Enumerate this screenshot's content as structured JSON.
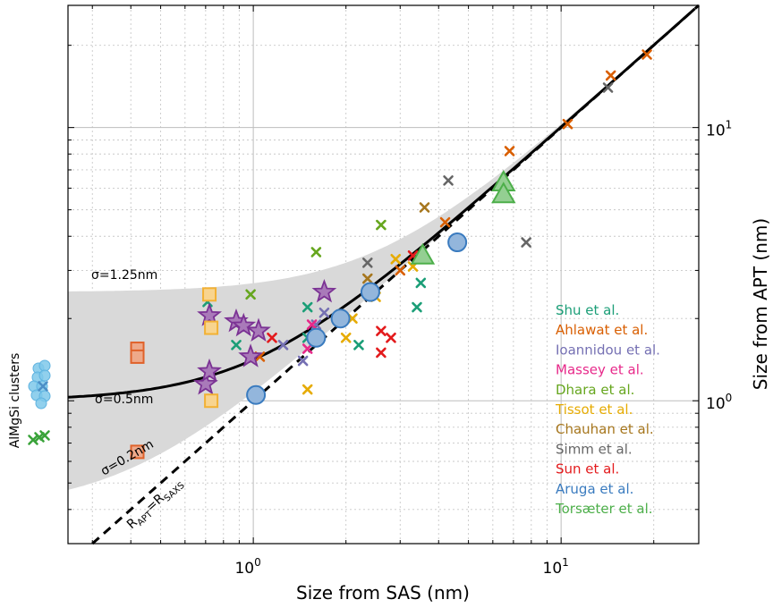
{
  "chart_data": {
    "type": "scatter",
    "title": "",
    "xlabel": "Size from SAS (nm)",
    "ylabel": "Size from APT (nm)",
    "xscale": "log",
    "yscale": "log",
    "xlim": [
      0.25,
      28
    ],
    "ylim": [
      0.3,
      28
    ],
    "x_tick_labels": [
      {
        "base": "10",
        "exp": "0",
        "value": 1
      },
      {
        "base": "10",
        "exp": "1",
        "value": 10
      }
    ],
    "y_tick_labels": [
      {
        "base": "10",
        "exp": "0",
        "value": 1
      },
      {
        "base": "10",
        "exp": "1",
        "value": 10
      }
    ],
    "grid": true,
    "legend_position": "right",
    "annotations": {
      "sigma_high": "σ=1.25nm",
      "sigma_mid": "σ=0.5nm",
      "sigma_low": "σ=0.2nm",
      "identity_label": "R",
      "identity_sub1": "APT",
      "identity_mid": "=R",
      "identity_sub2": "SAXS",
      "side_label": "AlMgSi clusters"
    },
    "model_curve": {
      "sigma": 0.5,
      "color": "#000000"
    },
    "band": {
      "sigma_low": 0.2,
      "sigma_high": 1.25,
      "color": "#d9d9d9"
    },
    "series": [
      {
        "name": "Shu et al.",
        "color": "#1b9e77",
        "marker": "x",
        "points": [
          [
            0.71,
            2.3
          ],
          [
            0.88,
            1.6
          ],
          [
            1.5,
            2.2
          ],
          [
            1.5,
            1.7
          ],
          [
            2.2,
            1.6
          ],
          [
            3.5,
            2.7
          ],
          [
            3.4,
            2.2
          ]
        ]
      },
      {
        "name": "Ahlawat et al.",
        "color": "#d95f02",
        "marker": "x",
        "points": [
          [
            1.05,
            1.45
          ],
          [
            3.0,
            3.0
          ],
          [
            4.2,
            4.5
          ],
          [
            6.8,
            8.2
          ],
          [
            10.5,
            10.3
          ],
          [
            14.5,
            15.5
          ],
          [
            19,
            18.5
          ]
        ]
      },
      {
        "name": "Ioannidou et al.",
        "color": "#7570b3",
        "marker": "x",
        "points": [
          [
            1.25,
            1.6
          ],
          [
            1.7,
            2.1
          ],
          [
            1.45,
            1.4
          ],
          [
            1.6,
            1.9
          ]
        ]
      },
      {
        "name": "Massey et al.",
        "color": "#e7298a",
        "marker": "x",
        "points": [
          [
            1.5,
            1.55
          ],
          [
            1.55,
            1.9
          ]
        ]
      },
      {
        "name": "Dhara et al.",
        "color": "#66a61e",
        "marker": "x",
        "points": [
          [
            0.98,
            2.45
          ],
          [
            1.6,
            3.5
          ],
          [
            2.6,
            4.4
          ]
        ]
      },
      {
        "name": "Tissot et al.",
        "color": "#e6ab02",
        "marker": "x",
        "points": [
          [
            1.5,
            1.1
          ],
          [
            2.0,
            1.7
          ],
          [
            2.1,
            2.0
          ],
          [
            2.9,
            3.3
          ],
          [
            3.3,
            3.1
          ],
          [
            2.5,
            2.4
          ]
        ]
      },
      {
        "name": "Chauhan et al.",
        "color": "#a6761d",
        "marker": "x",
        "points": [
          [
            2.35,
            2.8
          ],
          [
            3.6,
            5.1
          ]
        ]
      },
      {
        "name": "Simm et al.",
        "color": "#666666",
        "marker": "x",
        "points": [
          [
            2.35,
            3.2
          ],
          [
            4.3,
            6.4
          ],
          [
            7.7,
            3.8
          ],
          [
            14.2,
            14.0
          ]
        ]
      },
      {
        "name": "Sun et al.",
        "color": "#e31a1c",
        "marker": "x",
        "points": [
          [
            1.15,
            1.7
          ],
          [
            2.6,
            1.8
          ],
          [
            2.8,
            1.7
          ],
          [
            2.6,
            1.5
          ],
          [
            3.3,
            3.4
          ]
        ]
      },
      {
        "name": "Aruga et al.",
        "color": "#3a7bbf",
        "marker": "circle",
        "points": [
          [
            1.02,
            1.05
          ],
          [
            1.6,
            1.7
          ],
          [
            1.92,
            2.0
          ],
          [
            2.4,
            2.5
          ],
          [
            4.6,
            3.8
          ]
        ]
      },
      {
        "name": "Torsæter et al.",
        "color": "#4daf4a",
        "marker": "triangle",
        "points": [
          [
            3.55,
            3.4
          ],
          [
            6.5,
            6.3
          ],
          [
            6.5,
            5.7
          ]
        ]
      }
    ],
    "unlabeled_series": [
      {
        "color": "#7b3294",
        "marker": "star",
        "points": [
          [
            0.7,
            1.15
          ],
          [
            0.72,
            1.28
          ],
          [
            0.72,
            2.05
          ],
          [
            0.88,
            1.95
          ],
          [
            0.93,
            1.88
          ],
          [
            1.04,
            1.8
          ],
          [
            0.98,
            1.45
          ],
          [
            1.7,
            2.5
          ]
        ]
      },
      {
        "color": "#f2b134",
        "marker": "square",
        "points": [
          [
            0.72,
            2.45
          ],
          [
            0.73,
            1.85
          ],
          [
            0.73,
            1.0
          ]
        ]
      },
      {
        "color": "#e0622a",
        "marker": "square",
        "points": [
          [
            0.42,
            1.55
          ],
          [
            0.42,
            1.45
          ],
          [
            0.42,
            0.65
          ]
        ]
      }
    ],
    "clusters": {
      "circle_color": "#7ec8ea",
      "circle_count": 9,
      "x_color": "#4d8fc7",
      "x_marker_count": 1,
      "green_x_color": "#3aa33a",
      "green_x_count": 3
    }
  }
}
